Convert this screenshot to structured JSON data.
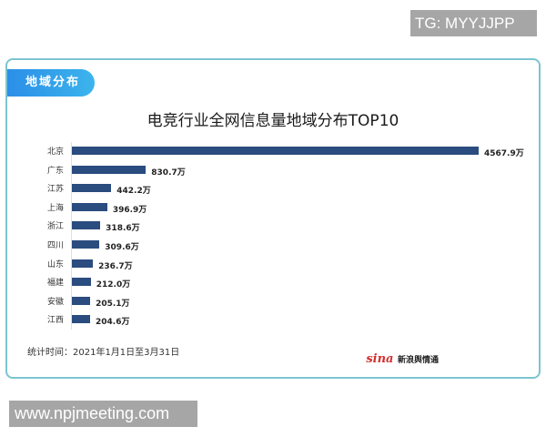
{
  "watermark_top": "TG: MYYJJPP",
  "watermark_bottom": "www.npjmeeting.com",
  "card": {
    "section_tag": "地域分布",
    "title": "电竞行业全网信息量地域分布TOP10",
    "footnote": "统计时间：2021年1月1日至3月31日",
    "logo_mark": "sina",
    "logo_text": "新浪舆情通"
  },
  "colors": {
    "bar": "#2a4c7f",
    "border": "#7cc4d0",
    "tag": "#2b8fe8"
  },
  "chart_data": {
    "type": "bar",
    "orientation": "horizontal",
    "title": "电竞行业全网信息量地域分布TOP10",
    "unit": "万",
    "categories": [
      "北京",
      "广东",
      "江苏",
      "上海",
      "浙江",
      "四川",
      "山东",
      "福建",
      "安徽",
      "江西"
    ],
    "values": [
      4567.9,
      830.7,
      442.2,
      396.9,
      318.6,
      309.6,
      236.7,
      212.0,
      205.1,
      204.6
    ],
    "labels": [
      "4567.9万",
      "830.7万",
      "442.2万",
      "396.9万",
      "318.6万",
      "309.6万",
      "236.7万",
      "212.0万",
      "205.1万",
      "204.6万"
    ],
    "xlabel": "",
    "ylabel": "",
    "grid": false,
    "legend": null
  }
}
